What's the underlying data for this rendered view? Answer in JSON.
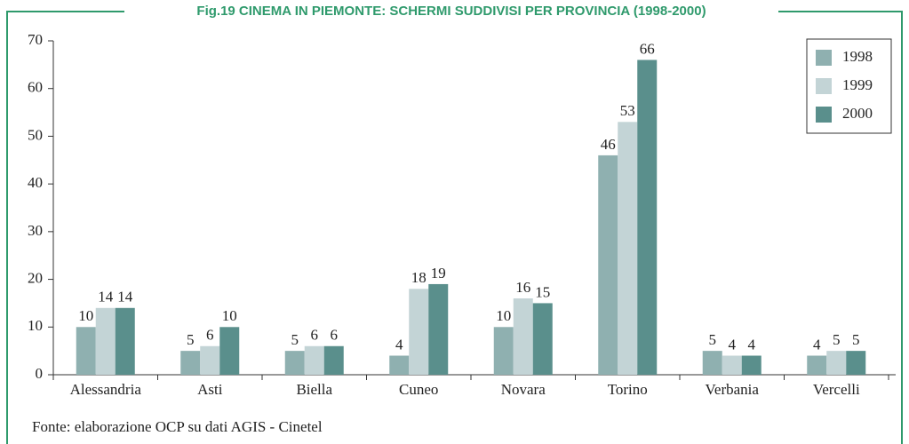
{
  "chart_data": {
    "type": "bar",
    "title": "Fig.19 CINEMA IN PIEMONTE: SCHERMI SUDDIVISI PER PROVINCIA (1998-2000)",
    "source": "Fonte: elaborazione OCP su dati AGIS - Cinetel",
    "categories": [
      "Alessandria",
      "Asti",
      "Biella",
      "Cuneo",
      "Novara",
      "Torino",
      "Verbania",
      "Vercelli"
    ],
    "series": [
      {
        "name": "1998",
        "color": "#8fb0b0",
        "values": [
          10,
          5,
          5,
          4,
          10,
          46,
          5,
          4
        ]
      },
      {
        "name": "1999",
        "color": "#c3d4d6",
        "values": [
          14,
          6,
          6,
          18,
          16,
          53,
          4,
          5
        ]
      },
      {
        "name": "2000",
        "color": "#5a8f8c",
        "values": [
          14,
          10,
          6,
          19,
          15,
          66,
          4,
          5
        ]
      }
    ],
    "ylim": [
      0,
      70
    ],
    "yticks": [
      0,
      10,
      20,
      30,
      40,
      50,
      60,
      70
    ],
    "legend": "top-right"
  }
}
